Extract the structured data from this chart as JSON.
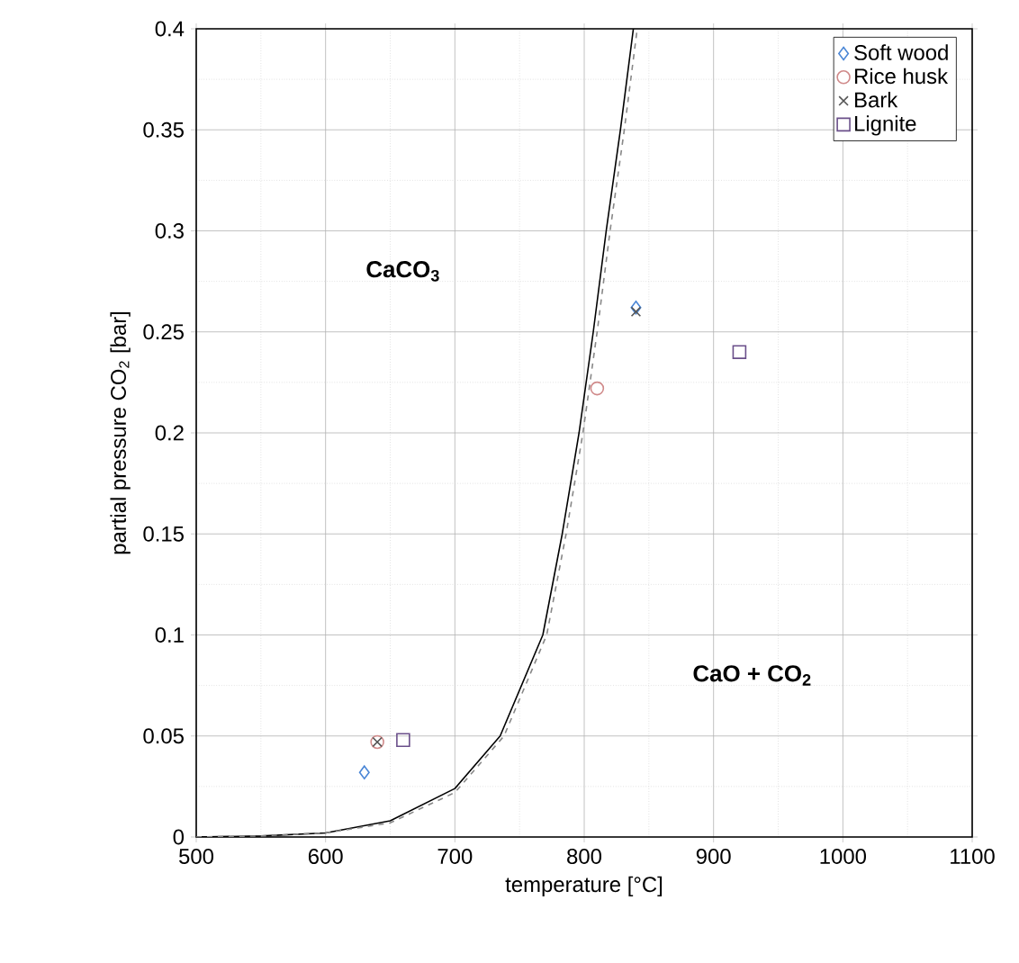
{
  "chart_data": {
    "type": "scatter",
    "xlabel": "temperature [°C]",
    "ylabel": "partial pressure CO$_{2}$ [bar]",
    "xlim": [
      500,
      1100
    ],
    "ylim": [
      0,
      0.4
    ],
    "xticks": [
      500,
      600,
      700,
      800,
      900,
      1000,
      1100
    ],
    "yticks": [
      0,
      0.05,
      0.1,
      0.15,
      0.2,
      0.25,
      0.3,
      0.35,
      0.4
    ],
    "grid": true,
    "legend": "top right",
    "annotations": [
      "CaCO$_{3}$",
      "CaO + CO$_{2}$"
    ],
    "series": [
      {
        "type": "line",
        "color": "#000000",
        "line_style": "solid",
        "marker": "none",
        "x": [
          500,
          550,
          600,
          650,
          700,
          735,
          768,
          783,
          796,
          807,
          817,
          828,
          838
        ],
        "values": [
          0,
          0.0005,
          0.002,
          0.008,
          0.024,
          0.05,
          0.1,
          0.15,
          0.2,
          0.25,
          0.3,
          0.35,
          0.4
        ]
      },
      {
        "type": "line",
        "color": "#888888",
        "line_style": "dashed",
        "marker": "none",
        "x": [
          500,
          550,
          600,
          650,
          700,
          738,
          771,
          786,
          799,
          810,
          820,
          831,
          841
        ],
        "values": [
          0,
          0.0005,
          0.002,
          0.007,
          0.022,
          0.05,
          0.1,
          0.15,
          0.2,
          0.25,
          0.3,
          0.35,
          0.4
        ]
      },
      {
        "name": "Soft wood",
        "color": "#4a86d6",
        "marker": "diamond",
        "x": [
          630,
          840
        ],
        "values": [
          0.032,
          0.262
        ]
      },
      {
        "name": "Rice husk",
        "color": "#d08a8a",
        "marker": "circle",
        "x": [
          640,
          810
        ],
        "values": [
          0.047,
          0.222
        ]
      },
      {
        "name": "Bark",
        "color": "#555555",
        "marker": "cross",
        "x": [
          640,
          840
        ],
        "values": [
          0.047,
          0.26
        ]
      },
      {
        "name": "Lignite",
        "color": "#6a4f8a",
        "marker": "square",
        "x": [
          660,
          920
        ],
        "values": [
          0.048,
          0.24
        ]
      }
    ]
  }
}
